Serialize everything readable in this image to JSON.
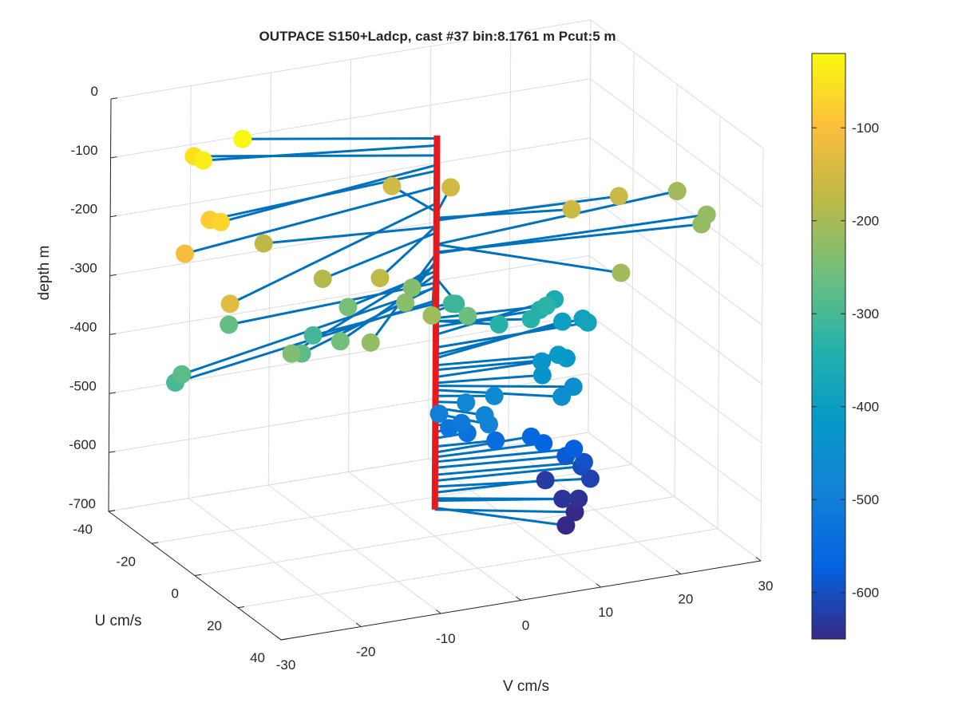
{
  "chart_data": {
    "type": "scatter",
    "title": "OUTPACE S150+Ladcp, cast #37 bin:8.1761 m  Pcut:5 m",
    "xlabel": "V cm/s",
    "ylabel": "U cm/s",
    "zlabel": "depth m",
    "xlim": [
      -30,
      30
    ],
    "ylim": [
      -40,
      40
    ],
    "zlim": [
      -700,
      0
    ],
    "x_ticks": [
      "-30",
      "-20",
      "-10",
      "0",
      "10",
      "20",
      "30"
    ],
    "y_ticks": [
      "-40",
      "-20",
      "0",
      "20",
      "40"
    ],
    "z_ticks": [
      "0",
      "-100",
      "-200",
      "-300",
      "-400",
      "-500",
      "-600",
      "-700"
    ],
    "colorbar": {
      "colormap": "parula",
      "range": [
        -650,
        -20
      ],
      "ticks": [
        "-100",
        "-200",
        "-300",
        "-400",
        "-500",
        "-600"
      ]
    },
    "grid": true,
    "stem_color": "#0072bd",
    "axis_line_color": "#e41a1c",
    "points": [
      {
        "depth": -25,
        "V": -20,
        "U": -16
      },
      {
        "depth": -37,
        "V": -26,
        "U": -12
      },
      {
        "depth": -54,
        "V": -25,
        "U": -20
      },
      {
        "depth": -70,
        "V": -30,
        "U": 11
      },
      {
        "depth": -80,
        "V": -30,
        "U": 6
      },
      {
        "depth": -107,
        "V": -35,
        "U": 13
      },
      {
        "depth": -135,
        "V": -35,
        "U": 34
      },
      {
        "depth": -150,
        "V": -1,
        "U": -17
      },
      {
        "depth": -152,
        "V": 5,
        "U": -12
      },
      {
        "depth": -164,
        "V": 22,
        "U": 3
      },
      {
        "depth": -160,
        "V": 15,
        "U": 7
      },
      {
        "depth": -173,
        "V": -13,
        "U": 22
      },
      {
        "depth": -175,
        "V": -20,
        "U": -6
      },
      {
        "depth": -185,
        "V": -18,
        "U": 14
      },
      {
        "depth": -205,
        "V": 15,
        "U": 30
      },
      {
        "depth": -205,
        "V": 32,
        "U": -7
      },
      {
        "depth": -220,
        "V": 33,
        "U": 3
      },
      {
        "depth": -218,
        "V": 31,
        "U": 8
      },
      {
        "depth": -208,
        "V": -10,
        "U": 35
      },
      {
        "depth": -220,
        "V": -19,
        "U": 40
      },
      {
        "depth": -232,
        "V": -9,
        "U": 19
      },
      {
        "depth": -235,
        "V": -6,
        "U": 11
      },
      {
        "depth": -240,
        "V": -27,
        "U": 33
      },
      {
        "depth": -250,
        "V": -14,
        "U": 11
      },
      {
        "depth": -256,
        "V": -19,
        "U": 26
      },
      {
        "depth": -262,
        "V": -2,
        "U": 22
      },
      {
        "depth": -270,
        "V": -27,
        "U": 4
      },
      {
        "depth": -276,
        "V": -23,
        "U": 23
      },
      {
        "depth": -278,
        "V": -38,
        "U": 23
      },
      {
        "depth": -300,
        "V": -38,
        "U": 20
      },
      {
        "depth": -305,
        "V": -17,
        "U": 6
      },
      {
        "depth": -310,
        "V": 2,
        "U": 0
      },
      {
        "depth": -318,
        "V": 3,
        "U": -2
      },
      {
        "depth": -330,
        "V": 13,
        "U": 3
      },
      {
        "depth": -335,
        "V": 10,
        "U": 7
      },
      {
        "depth": -335,
        "V": 6,
        "U": 7
      },
      {
        "depth": -345,
        "V": 13,
        "U": 0
      },
      {
        "depth": -358,
        "V": 17,
        "U": -8
      },
      {
        "depth": -380,
        "V": 19,
        "U": 0
      },
      {
        "depth": -392,
        "V": 20,
        "U": -6
      },
      {
        "depth": -398,
        "V": 18,
        "U": -8
      },
      {
        "depth": -410,
        "V": 14,
        "U": 5
      },
      {
        "depth": -418,
        "V": 15,
        "U": 5
      },
      {
        "depth": -430,
        "V": 13,
        "U": 1
      },
      {
        "depth": -440,
        "V": 12,
        "U": 5
      },
      {
        "depth": -445,
        "V": 14,
        "U": 12
      },
      {
        "depth": -452,
        "V": 12,
        "U": 14
      },
      {
        "depth": -462,
        "V": 6,
        "U": 5
      },
      {
        "depth": -472,
        "V": 3,
        "U": 3
      },
      {
        "depth": -482,
        "V": 4,
        "U": 8
      },
      {
        "depth": -492,
        "V": 4,
        "U": 10
      },
      {
        "depth": -500,
        "V": 1,
        "U": -2
      },
      {
        "depth": -512,
        "V": 3,
        "U": 1
      },
      {
        "depth": -524,
        "V": 2,
        "U": -1
      },
      {
        "depth": -534,
        "V": 4,
        "U": 0
      },
      {
        "depth": -548,
        "V": 7,
        "U": 2
      },
      {
        "depth": -558,
        "V": 12,
        "U": 0
      },
      {
        "depth": -566,
        "V": 13,
        "U": 2
      },
      {
        "depth": -574,
        "V": 16,
        "U": 5
      },
      {
        "depth": -584,
        "V": 15,
        "U": 5
      },
      {
        "depth": -596,
        "V": 17,
        "U": 6
      },
      {
        "depth": -606,
        "V": 17,
        "U": 5
      },
      {
        "depth": -616,
        "V": 17,
        "U": 9
      },
      {
        "depth": -626,
        "V": 13,
        "U": 3
      },
      {
        "depth": -636,
        "V": 13,
        "U": 11
      },
      {
        "depth": -640,
        "V": 15,
        "U": 11
      },
      {
        "depth": -652,
        "V": 11,
        "U": 20
      },
      {
        "depth": -655,
        "V": 14,
        "U": 13
      }
    ]
  }
}
